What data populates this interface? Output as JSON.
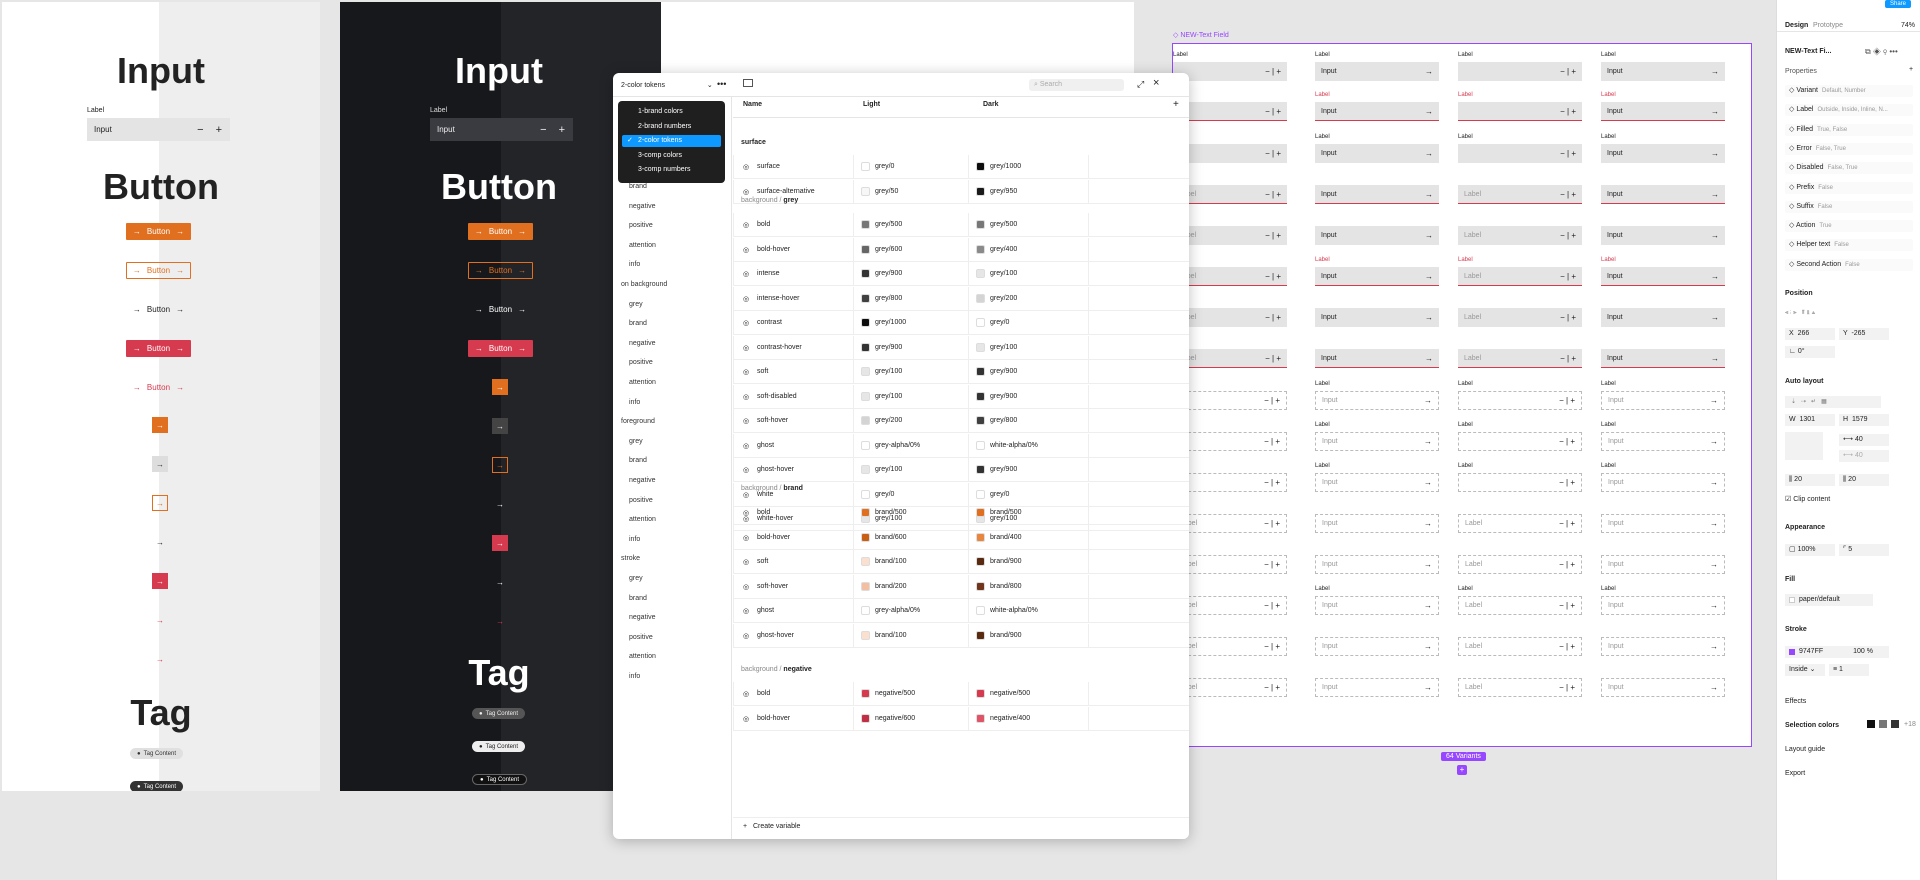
{
  "light": {
    "input_title": "Input",
    "label": "Label",
    "input_value": "Input",
    "button_title": "Button",
    "btn": "Button",
    "tag_title": "Tag",
    "tag": "Tag Content"
  },
  "dark": {
    "input_title": "Input",
    "label": "Label",
    "input_value": "Input",
    "button_title": "Button",
    "btn": "Button",
    "tag_title": "Tag",
    "tag": "Tag Content"
  },
  "vars": {
    "collection": "2-color tokens",
    "search_placeholder": "Search",
    "dropdown": [
      "1-brand colors",
      "2-brand numbers",
      "2-color tokens",
      "3-comp colors",
      "3-comp numbers"
    ],
    "cols": {
      "name": "Name",
      "light": "Light",
      "dark": "Dark"
    },
    "side": [
      "brand",
      "negative",
      "positive",
      "attention",
      "info",
      "on background",
      "grey",
      "brand",
      "negative",
      "positive",
      "attention",
      "info",
      "foreground",
      "grey",
      "brand",
      "negative",
      "positive",
      "attention",
      "info",
      "stroke",
      "grey",
      "brand",
      "negative",
      "positive",
      "attention",
      "info"
    ],
    "groups": [
      {
        "pre": "",
        "name": "surface"
      },
      {
        "pre": "background / ",
        "name": "grey"
      },
      {
        "pre": "background / ",
        "name": "brand"
      },
      {
        "pre": "background / ",
        "name": "negative"
      }
    ],
    "rows": [
      [
        "surface",
        "grey/0",
        "grey/1000",
        "#ffffff",
        "#0d0d0d"
      ],
      [
        "surface-alternative",
        "grey/50",
        "grey/950",
        "#f7f7f7",
        "#1a1a1a"
      ],
      [
        "bold",
        "grey/500",
        "grey/500",
        "#777777",
        "#777777"
      ],
      [
        "bold-hover",
        "grey/600",
        "grey/400",
        "#666666",
        "#8a8a8a"
      ],
      [
        "intense",
        "grey/900",
        "grey/100",
        "#333333",
        "#e6e6e6"
      ],
      [
        "intense-hover",
        "grey/800",
        "grey/200",
        "#404040",
        "#d4d4d4"
      ],
      [
        "contrast",
        "grey/1000",
        "grey/0",
        "#0d0d0d",
        "#ffffff"
      ],
      [
        "contrast-hover",
        "grey/900",
        "grey/100",
        "#333333",
        "#e6e6e6"
      ],
      [
        "soft",
        "grey/100",
        "grey/900",
        "#e6e6e6",
        "#333333"
      ],
      [
        "soft-disabled",
        "grey/100",
        "grey/900",
        "#e6e6e6",
        "#333333"
      ],
      [
        "soft-hover",
        "grey/200",
        "grey/800",
        "#d4d4d4",
        "#404040"
      ],
      [
        "ghost",
        "grey-alpha/0%",
        "white-alpha/0%",
        "#ffffff",
        "#ffffff"
      ],
      [
        "ghost-hover",
        "grey/100",
        "grey/900",
        "#e6e6e6",
        "#333333"
      ],
      [
        "white",
        "grey/0",
        "grey/0",
        "#ffffff",
        "#ffffff"
      ],
      [
        "white-hover",
        "grey/100",
        "grey/100",
        "#e6e6e6",
        "#e6e6e6"
      ],
      [
        "bold",
        "brand/500",
        "brand/500",
        "#e07020",
        "#e07020"
      ],
      [
        "bold-hover",
        "brand/600",
        "brand/400",
        "#c85f15",
        "#e8863f"
      ],
      [
        "soft",
        "brand/100",
        "brand/900",
        "#fbe0cf",
        "#5a2a10"
      ],
      [
        "soft-hover",
        "brand/200",
        "brand/800",
        "#f3bfa0",
        "#70351a"
      ],
      [
        "ghost",
        "grey-alpha/0%",
        "white-alpha/0%",
        "#ffffff",
        "#ffffff"
      ],
      [
        "ghost-hover",
        "brand/100",
        "brand/900",
        "#fbe0cf",
        "#5a2a10"
      ],
      [
        "bold",
        "negative/500",
        "negative/500",
        "#d63a4f",
        "#d63a4f"
      ],
      [
        "bold-hover",
        "negative/600",
        "negative/400",
        "#c02f44",
        "#e05468"
      ]
    ],
    "create": "Create variable"
  },
  "canvas": {
    "frame_name": "NEW-Text Field",
    "variants_badge": "64 Variants",
    "label": "Label",
    "input": "Input"
  },
  "panel": {
    "tabs": [
      "Design",
      "Prototype"
    ],
    "zoom": "74%",
    "share": "Share",
    "comp_name": "NEW-Text Fi...",
    "properties_title": "Properties",
    "props": [
      [
        "Variant",
        "Default, Number"
      ],
      [
        "Label",
        "Outside, Inside, Inline, N..."
      ],
      [
        "Filled",
        "True, False"
      ],
      [
        "Error",
        "False, True"
      ],
      [
        "Disabled",
        "False, True"
      ],
      [
        "Prefix",
        "False"
      ],
      [
        "Suffix",
        "False"
      ],
      [
        "Action",
        "True"
      ],
      [
        "Helper text",
        "False"
      ],
      [
        "Second Action",
        "False"
      ]
    ],
    "position": "Position",
    "x": "266",
    "y": "-265",
    "rot": "0°",
    "auto_layout": "Auto layout",
    "w": "1301",
    "h": "1579",
    "gap": "40",
    "gap2": "40",
    "pad1": "20",
    "pad2": "20",
    "clip": "Clip content",
    "appearance": "Appearance",
    "opacity": "100%",
    "radius": "5",
    "fill": "Fill",
    "fill_value": "paper/default",
    "stroke": "Stroke",
    "stroke_hex": "9747FF",
    "stroke_op": "100",
    "stroke_pos": "Inside",
    "stroke_w": "1",
    "effects": "Effects",
    "selection_colors": "Selection colors",
    "sel_more": "+18",
    "layout_guide": "Layout guide",
    "export": "Export"
  }
}
